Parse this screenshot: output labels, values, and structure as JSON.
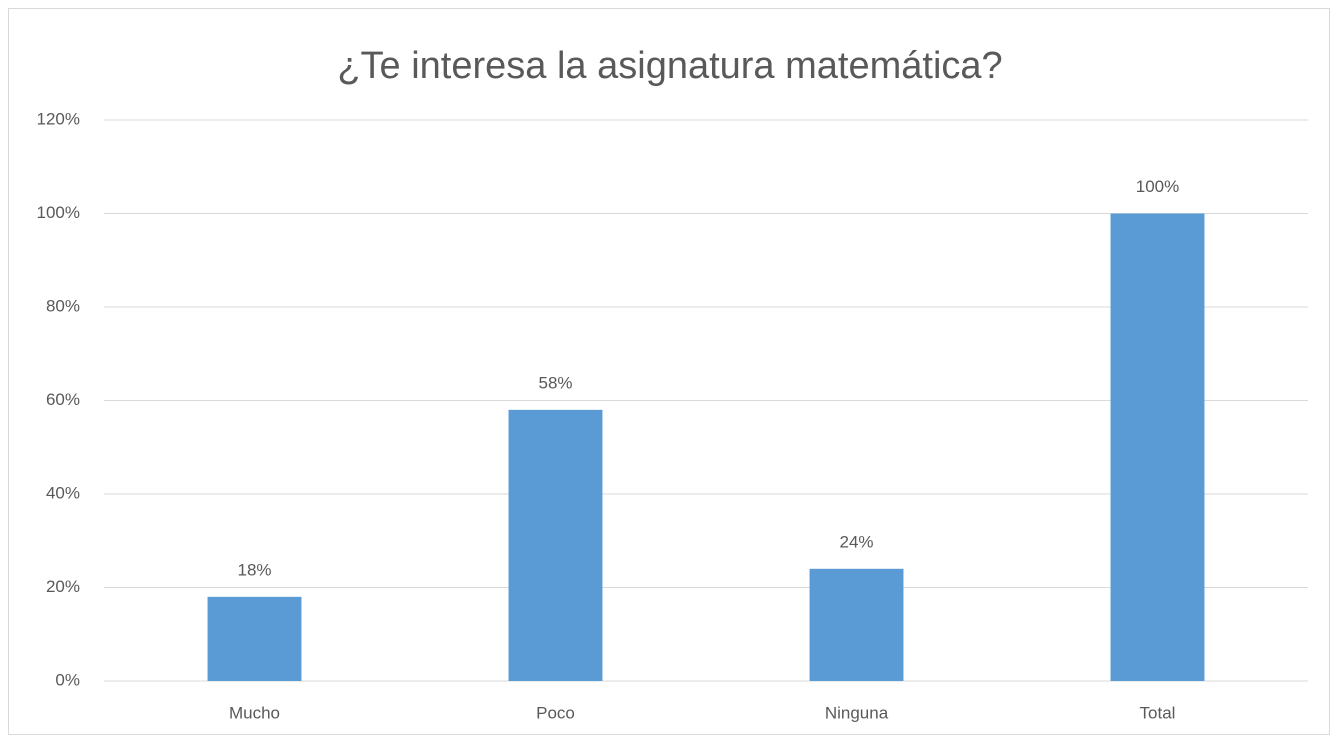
{
  "chart_data": {
    "type": "bar",
    "title": "¿Te interesa la asignatura matemática?",
    "categories": [
      "Mucho",
      "Poco",
      "Ninguna",
      "Total"
    ],
    "values": [
      18,
      58,
      24,
      100
    ],
    "value_labels": [
      "18%",
      "58%",
      "24%",
      "100%"
    ],
    "color": "#5b9bd5",
    "ylim": [
      0,
      120
    ],
    "yticks": [
      {
        "value": 0,
        "label": "0%"
      },
      {
        "value": 20,
        "label": "20%"
      },
      {
        "value": 40,
        "label": "40%"
      },
      {
        "value": 60,
        "label": "60%"
      },
      {
        "value": 80,
        "label": "80%"
      },
      {
        "value": 100,
        "label": "100%"
      },
      {
        "value": 120,
        "label": "120%"
      }
    ],
    "grid": true
  }
}
